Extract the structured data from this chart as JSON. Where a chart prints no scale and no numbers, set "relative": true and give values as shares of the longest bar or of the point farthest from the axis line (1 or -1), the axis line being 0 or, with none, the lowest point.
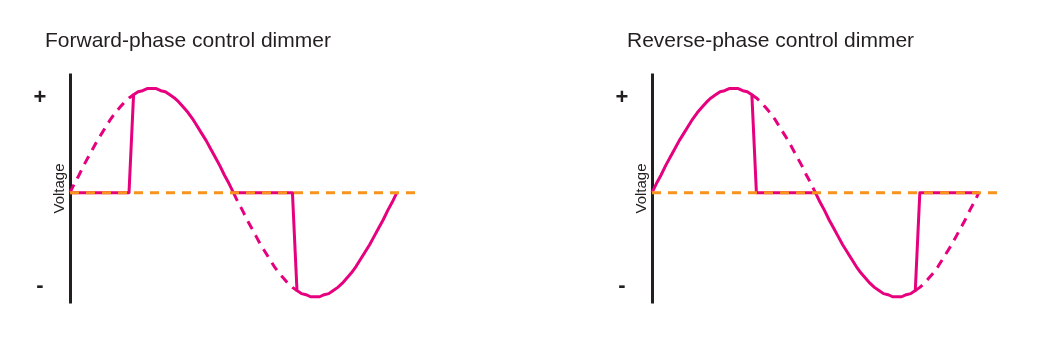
{
  "chart_data": [
    {
      "type": "line",
      "title": "Forward-phase control dimmer",
      "ylabel": "Voltage",
      "relative": true,
      "annotations": [
        "+",
        "-"
      ],
      "categories": [
        null,
        null,
        null,
        null,
        null,
        null,
        null,
        null,
        null,
        null,
        null,
        null,
        null,
        null,
        null,
        null,
        null,
        null,
        null,
        null,
        null,
        null,
        null,
        null,
        null,
        null,
        null,
        null,
        null,
        null,
        null,
        null,
        null,
        null,
        null,
        null,
        null,
        null,
        null,
        null,
        null,
        null,
        null,
        null,
        null,
        null,
        null,
        null,
        null,
        null,
        null,
        null,
        null,
        null,
        null,
        null,
        null,
        null,
        null,
        null,
        null,
        null,
        null,
        null,
        null,
        null,
        null,
        null,
        null,
        null,
        null,
        null,
        null,
        null,
        null,
        null,
        null
      ],
      "ref_lines": [
        {
          "axis": "y",
          "value": 0,
          "color": "#f7941d",
          "line_style": "dashed"
        }
      ],
      "series": [
        {
          "color": "#e6007e",
          "line_style": "solid",
          "values": [
            0,
            0,
            0,
            0,
            0,
            0,
            0,
            0,
            0,
            0,
            0,
            0,
            0,
            0,
            0.94,
            0.97,
            0.98,
            1,
            1,
            1,
            0.98,
            0.97,
            0.94,
            0.91,
            0.87,
            0.82,
            0.77,
            0.71,
            0.64,
            0.57,
            0.5,
            0.42,
            0.34,
            0.26,
            0.17,
            0.09,
            0,
            0,
            0,
            0,
            0,
            0,
            0,
            0,
            0,
            0,
            0,
            0,
            0,
            0,
            -0.94,
            -0.97,
            -0.98,
            -1,
            -1,
            -1,
            -0.98,
            -0.97,
            -0.94,
            -0.91,
            -0.87,
            -0.82,
            -0.77,
            -0.71,
            -0.64,
            -0.57,
            -0.5,
            -0.42,
            -0.34,
            -0.26,
            -0.17,
            -0.09,
            0,
            null,
            null,
            null,
            null
          ]
        },
        {
          "color": "#e6007e",
          "line_style": "dashed",
          "values": [
            0,
            0.09,
            0.17,
            0.26,
            0.34,
            0.42,
            0.5,
            0.57,
            0.64,
            0.71,
            0.77,
            0.82,
            0.87,
            0.91,
            0.94,
            null,
            null,
            null,
            null,
            null,
            null,
            null,
            null,
            null,
            null,
            null,
            null,
            null,
            null,
            null,
            null,
            null,
            null,
            null,
            null,
            null,
            null,
            null,
            null,
            null,
            null,
            null,
            null,
            null,
            null,
            null,
            null,
            null,
            null,
            null,
            null,
            null,
            null,
            null,
            null,
            null,
            null,
            null,
            null,
            null,
            null,
            null,
            null,
            null,
            null,
            null,
            null,
            null,
            null,
            null,
            null,
            null,
            null,
            null,
            null,
            null,
            null
          ]
        },
        {
          "color": "#e6007e",
          "line_style": "dashed",
          "values": [
            null,
            null,
            null,
            null,
            null,
            null,
            null,
            null,
            null,
            null,
            null,
            null,
            null,
            null,
            null,
            null,
            null,
            null,
            null,
            null,
            null,
            null,
            null,
            null,
            null,
            null,
            null,
            null,
            null,
            null,
            null,
            null,
            null,
            null,
            null,
            null,
            0,
            -0.09,
            -0.17,
            -0.26,
            -0.34,
            -0.42,
            -0.5,
            -0.57,
            -0.64,
            -0.71,
            -0.77,
            -0.82,
            -0.87,
            -0.91,
            -0.94,
            null,
            null,
            null,
            null,
            null,
            null,
            null,
            null,
            null,
            null,
            null,
            null,
            null,
            null,
            null,
            null,
            null,
            null,
            null,
            null,
            null,
            null,
            null,
            null,
            null,
            null
          ]
        }
      ]
    },
    {
      "type": "line",
      "title": "Reverse-phase control dimmer",
      "ylabel": "Voltage",
      "relative": true,
      "annotations": [
        "+",
        "-"
      ],
      "categories": [
        null,
        null,
        null,
        null,
        null,
        null,
        null,
        null,
        null,
        null,
        null,
        null,
        null,
        null,
        null,
        null,
        null,
        null,
        null,
        null,
        null,
        null,
        null,
        null,
        null,
        null,
        null,
        null,
        null,
        null,
        null,
        null,
        null,
        null,
        null,
        null,
        null,
        null,
        null,
        null,
        null,
        null,
        null,
        null,
        null,
        null,
        null,
        null,
        null,
        null,
        null,
        null,
        null,
        null,
        null,
        null,
        null,
        null,
        null,
        null,
        null,
        null,
        null,
        null,
        null,
        null,
        null,
        null,
        null,
        null,
        null,
        null,
        null,
        null,
        null,
        null,
        null
      ],
      "ref_lines": [
        {
          "axis": "y",
          "value": 0,
          "color": "#f7941d",
          "line_style": "dashed"
        }
      ],
      "series": [
        {
          "color": "#e6007e",
          "line_style": "solid",
          "values": [
            0,
            0.09,
            0.17,
            0.26,
            0.34,
            0.42,
            0.5,
            0.57,
            0.64,
            0.71,
            0.77,
            0.82,
            0.87,
            0.91,
            0.94,
            0.97,
            0.98,
            1,
            1,
            1,
            0.98,
            0.97,
            0.94,
            0,
            0,
            0,
            0,
            0,
            0,
            0,
            0,
            0,
            0,
            0,
            0,
            0,
            0,
            -0.09,
            -0.17,
            -0.26,
            -0.34,
            -0.42,
            -0.5,
            -0.57,
            -0.64,
            -0.71,
            -0.77,
            -0.82,
            -0.87,
            -0.91,
            -0.94,
            -0.97,
            -0.98,
            -1,
            -1,
            -1,
            -0.98,
            -0.97,
            -0.94,
            0,
            0,
            0,
            0,
            0,
            0,
            0,
            0,
            0,
            0,
            0,
            0,
            0,
            0,
            null,
            null,
            null,
            null
          ]
        },
        {
          "color": "#e6007e",
          "line_style": "dashed",
          "values": [
            null,
            null,
            null,
            null,
            null,
            null,
            null,
            null,
            null,
            null,
            null,
            null,
            null,
            null,
            null,
            null,
            null,
            null,
            null,
            null,
            null,
            null,
            0.94,
            0.91,
            0.87,
            0.82,
            0.77,
            0.71,
            0.64,
            0.57,
            0.5,
            0.42,
            0.34,
            0.26,
            0.17,
            0.09,
            0,
            null,
            null,
            null,
            null,
            null,
            null,
            null,
            null,
            null,
            null,
            null,
            null,
            null,
            null,
            null,
            null,
            null,
            null,
            null,
            null,
            null,
            null,
            null,
            null,
            null,
            null,
            null,
            null,
            null,
            null,
            null,
            null,
            null,
            null,
            null,
            null,
            null,
            null,
            null,
            null
          ]
        },
        {
          "color": "#e6007e",
          "line_style": "dashed",
          "values": [
            null,
            null,
            null,
            null,
            null,
            null,
            null,
            null,
            null,
            null,
            null,
            null,
            null,
            null,
            null,
            null,
            null,
            null,
            null,
            null,
            null,
            null,
            null,
            null,
            null,
            null,
            null,
            null,
            null,
            null,
            null,
            null,
            null,
            null,
            null,
            null,
            null,
            null,
            null,
            null,
            null,
            null,
            null,
            null,
            null,
            null,
            null,
            null,
            null,
            null,
            null,
            null,
            null,
            null,
            null,
            null,
            null,
            null,
            -0.94,
            -0.91,
            -0.87,
            -0.82,
            -0.77,
            -0.71,
            -0.64,
            -0.57,
            -0.5,
            -0.42,
            -0.34,
            -0.26,
            -0.17,
            -0.09,
            0,
            null,
            null,
            null,
            null
          ]
        }
      ]
    }
  ]
}
